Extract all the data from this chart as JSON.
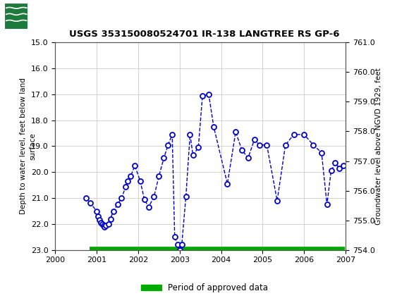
{
  "title": "USGS 353150080524701 IR-138 LANGTREE RS GP-6",
  "ylabel_left": "Depth to water level, feet below land\nsurface",
  "ylabel_right": "Groundwater level above NGVD 1929, feet",
  "ylim_left": [
    15.0,
    23.0
  ],
  "ylim_right": [
    761.0,
    754.0
  ],
  "xlim": [
    2000,
    2007
  ],
  "header_bg": "#1c7a3c",
  "data_color": "#0000cc",
  "approved_color": "#00aa00",
  "yticks_left": [
    15.0,
    16.0,
    17.0,
    18.0,
    19.0,
    20.0,
    21.0,
    22.0,
    23.0
  ],
  "yticks_right": [
    761.0,
    760.0,
    759.0,
    758.0,
    757.0,
    756.0,
    755.0,
    754.0
  ],
  "xticks": [
    2000,
    2001,
    2002,
    2003,
    2004,
    2005,
    2006,
    2007
  ],
  "data_x": [
    2000.75,
    2000.85,
    2001.0,
    2001.04,
    2001.07,
    2001.1,
    2001.13,
    2001.16,
    2001.19,
    2001.22,
    2001.28,
    2001.33,
    2001.4,
    2001.5,
    2001.6,
    2001.7,
    2001.75,
    2001.82,
    2001.92,
    2002.05,
    2002.15,
    2002.25,
    2002.38,
    2002.5,
    2002.62,
    2002.72,
    2002.82,
    2002.88,
    2002.95,
    2003.0,
    2003.05,
    2003.15,
    2003.25,
    2003.32,
    2003.45,
    2003.55,
    2003.7,
    2003.82,
    2004.15,
    2004.35,
    2004.5,
    2004.65,
    2004.8,
    2004.92,
    2005.1,
    2005.35,
    2005.55,
    2005.75,
    2006.0,
    2006.22,
    2006.42,
    2006.55,
    2006.65,
    2006.75,
    2006.85,
    2006.95
  ],
  "data_y": [
    21.0,
    21.2,
    21.5,
    21.7,
    21.85,
    21.95,
    22.0,
    22.05,
    22.1,
    22.05,
    22.0,
    21.8,
    21.5,
    21.25,
    21.0,
    20.55,
    20.35,
    20.15,
    19.75,
    20.35,
    21.05,
    21.35,
    20.95,
    20.15,
    19.45,
    18.95,
    18.55,
    22.5,
    22.8,
    23.0,
    22.8,
    20.95,
    18.55,
    19.35,
    19.05,
    17.05,
    17.0,
    18.25,
    20.45,
    18.45,
    19.15,
    19.45,
    18.75,
    18.95,
    18.95,
    21.1,
    18.95,
    18.55,
    18.55,
    18.95,
    19.25,
    21.25,
    19.95,
    19.65,
    19.85,
    19.75
  ],
  "legend_label": "Period of approved data",
  "approved_bar_y": 23.0,
  "approved_bar_xstart": 2000.83,
  "approved_bar_xend": 2006.98
}
